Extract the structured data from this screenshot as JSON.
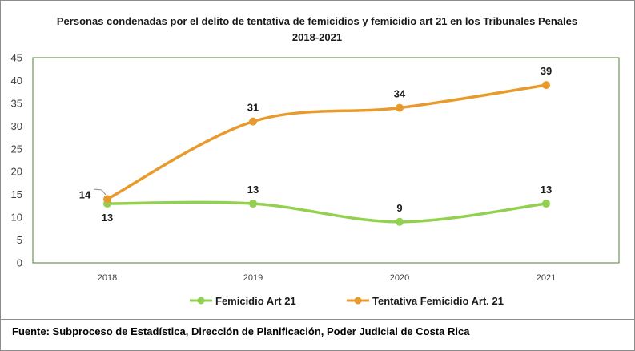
{
  "source_note": "Fuente: Subproceso de Estadística, Dirección de Planificación, Poder Judicial de Costa Rica",
  "chart_data": {
    "type": "line",
    "title": "Personas condenadas por el delito de tentativa de femicidios y femicidio art 21 en los Tribunales Penales 2018-2021",
    "categories": [
      "2018",
      "2019",
      "2020",
      "2021"
    ],
    "yticks": [
      "0",
      "5",
      "10",
      "15",
      "20",
      "25",
      "30",
      "35",
      "40",
      "45"
    ],
    "ylim": [
      0,
      45
    ],
    "xlabel": "",
    "ylabel": "",
    "grid": false,
    "legend_position": "bottom",
    "series": [
      {
        "name": "Femicidio Art 21",
        "color": "#92d050",
        "values": [
          13,
          13,
          9,
          13
        ],
        "labels": [
          "13",
          "13",
          "9",
          "13"
        ]
      },
      {
        "name": "Tentativa Femicidio Art. 21",
        "color": "#e99a2c",
        "values": [
          14,
          31,
          34,
          39
        ],
        "labels": [
          "14",
          "31",
          "34",
          "39"
        ]
      }
    ]
  }
}
